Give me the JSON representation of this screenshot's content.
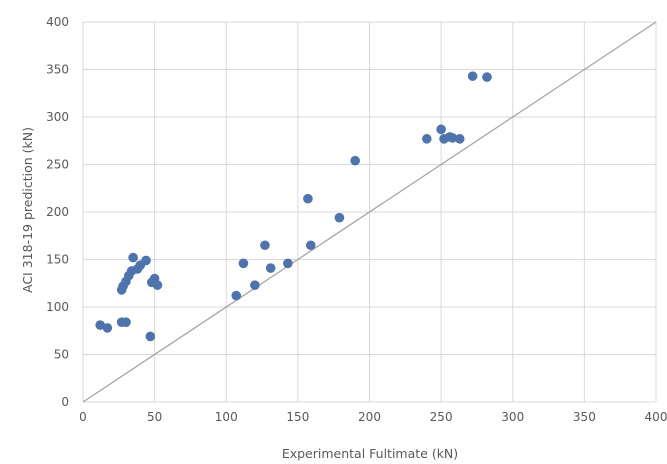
{
  "chart_data": {
    "type": "scatter",
    "title": "",
    "xlabel": "Experimental Fultimate (kN)",
    "ylabel": "ACI 318-19 prediction (kN)",
    "xlim": [
      0,
      400
    ],
    "ylim": [
      0,
      400
    ],
    "xticks": [
      0,
      50,
      100,
      150,
      200,
      250,
      300,
      350,
      400
    ],
    "yticks": [
      0,
      50,
      100,
      150,
      200,
      250,
      300,
      350,
      400
    ],
    "grid": true,
    "legend": "none",
    "reference_line": {
      "from": [
        0,
        0
      ],
      "to": [
        400,
        400
      ]
    },
    "colors": {
      "points": "#4f74ad",
      "grid": "#d9d9d9",
      "reference_line": "#a6a6a6",
      "tick_text": "#595959"
    },
    "series": [
      {
        "points": [
          [
            12,
            81
          ],
          [
            17,
            78
          ],
          [
            27,
            84
          ],
          [
            30,
            84
          ],
          [
            47,
            69
          ],
          [
            27,
            118
          ],
          [
            28,
            122
          ],
          [
            30,
            127
          ],
          [
            32,
            133
          ],
          [
            34,
            138
          ],
          [
            35,
            152
          ],
          [
            38,
            140
          ],
          [
            40,
            144
          ],
          [
            44,
            149
          ],
          [
            48,
            126
          ],
          [
            50,
            130
          ],
          [
            52,
            123
          ],
          [
            107,
            112
          ],
          [
            112,
            146
          ],
          [
            120,
            123
          ],
          [
            127,
            165
          ],
          [
            131,
            141
          ],
          [
            143,
            146
          ],
          [
            157,
            214
          ],
          [
            159,
            165
          ],
          [
            179,
            194
          ],
          [
            190,
            254
          ],
          [
            240,
            277
          ],
          [
            250,
            287
          ],
          [
            252,
            277
          ],
          [
            256,
            279
          ],
          [
            258,
            278
          ],
          [
            263,
            277
          ],
          [
            272,
            343
          ],
          [
            282,
            342
          ]
        ]
      }
    ]
  }
}
